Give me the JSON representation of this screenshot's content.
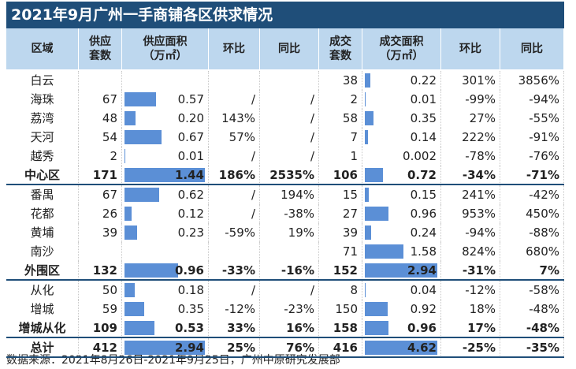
{
  "title": "2021年9月广州一手商铺各区供求情况",
  "header": [
    [
      "区域"
    ],
    [
      "供应",
      "套数"
    ],
    [
      "供应面积",
      "（万㎡）"
    ],
    [
      "环比"
    ],
    [
      "同比"
    ],
    [
      "成交",
      "套数"
    ],
    [
      "成交面积",
      "（万㎡）"
    ],
    [
      "环比"
    ],
    [
      "同比"
    ]
  ],
  "groups": [
    {
      "rows": [
        [
          "白云",
          null,
          null,
          null,
          null,
          "38",
          "0.22",
          "301%",
          "3856%"
        ],
        [
          "海珠",
          "67",
          "0.57",
          "/",
          "/",
          "2",
          "0.01",
          "-99%",
          "-94%"
        ],
        [
          "荔湾",
          "48",
          "0.20",
          "143%",
          "/",
          "58",
          "0.35",
          "27%",
          "-55%"
        ],
        [
          "天河",
          "54",
          "0.67",
          "57%",
          "/",
          "7",
          "0.14",
          "222%",
          "-91%"
        ],
        [
          "越秀",
          "2",
          "0.01",
          "/",
          "/",
          "1",
          "0.002",
          "-78%",
          "-76%"
        ],
        [
          "中心区",
          "171",
          "1.44",
          "186%",
          "2535%",
          "106",
          "0.72",
          "-34%",
          "-71%"
        ]
      ]
    },
    {
      "rows": [
        [
          "番禺",
          "67",
          "0.62",
          "/",
          "194%",
          "15",
          "0.15",
          "241%",
          "-42%"
        ],
        [
          "花都",
          "26",
          "0.12",
          "/",
          "-38%",
          "27",
          "0.96",
          "953%",
          "450%"
        ],
        [
          "黄埔",
          "39",
          "0.23",
          "-59%",
          "19%",
          "39",
          "0.24",
          "-94%",
          "-88%"
        ],
        [
          "南沙",
          null,
          null,
          null,
          null,
          "71",
          "1.58",
          "824%",
          "680%"
        ],
        [
          "外围区",
          "132",
          "0.96",
          "-33%",
          "-16%",
          "152",
          "2.94",
          "-31%",
          "7%"
        ]
      ]
    },
    {
      "rows": [
        [
          "从化",
          "50",
          "0.18",
          "/",
          "/",
          "8",
          "0.04",
          "-12%",
          "-58%"
        ],
        [
          "增城",
          "59",
          "0.35",
          "-12%",
          "-23%",
          "150",
          "0.92",
          "18%",
          "-48%"
        ],
        [
          "增城从化",
          "109",
          "0.53",
          "33%",
          "16%",
          "158",
          "0.96",
          "17%",
          "-48%"
        ]
      ]
    },
    {
      "rows": [
        [
          "总计",
          "412",
          "2.94",
          "25%",
          "76%",
          "416",
          "4.62",
          "-25%",
          "-35%"
        ]
      ]
    }
  ],
  "footer": "数据来源：2021年8月26日-2021年9月25日，广州中原研究发展部"
}
